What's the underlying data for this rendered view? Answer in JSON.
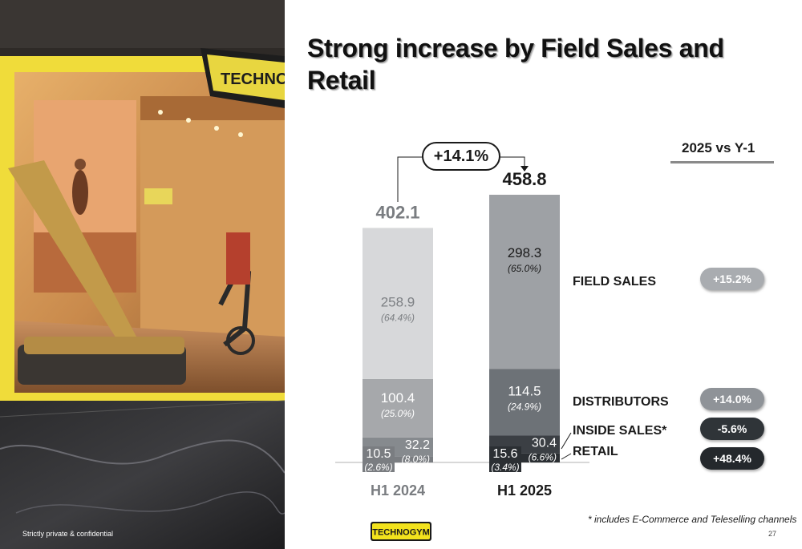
{
  "title": "Strong increase by Field Sales and Retail",
  "comparison_header": "2025 vs Y-1",
  "growth_total": "+14.1%",
  "footnote": "* includes E-Commerce and Teleselling channels",
  "footer_left": "Strictly private & confidential",
  "page_number": "27",
  "photo": {
    "alt_brand": "TECHNOGYM"
  },
  "colors": {
    "field_sales_2024": "#d7d8da",
    "distributors_2024": "#a6a8ab",
    "inside_2024": "#868a8e",
    "retail_2024": "#7a7d81",
    "field_sales_2025": "#9ea1a5",
    "distributors_2025": "#6d7277",
    "inside_2025": "#3b3f44",
    "retail_2025": "#2b2f33",
    "pill_field": "#a9acb0",
    "pill_dist": "#8f9398",
    "pill_inside": "#2f3438",
    "pill_retail": "#24282c",
    "logo_yellow": "#f2e21d"
  },
  "chart_data": {
    "type": "bar",
    "stacked": true,
    "categories": [
      "H1 2024",
      "H1 2025"
    ],
    "totals": [
      "402.1",
      "458.8"
    ],
    "series": [
      {
        "name": "RETAIL",
        "values": [
          10.5,
          15.6
        ],
        "value_labels": [
          "10.5",
          "15.6"
        ],
        "share_labels": [
          "(2.6%)",
          "(3.4%)"
        ],
        "growth": "+48.4%"
      },
      {
        "name": "INSIDE SALES*",
        "values": [
          32.2,
          30.4
        ],
        "value_labels": [
          "32.2",
          "30.4"
        ],
        "share_labels": [
          "(8.0%)",
          "(6.6%)"
        ],
        "growth": "-5.6%"
      },
      {
        "name": "DISTRIBUTORS",
        "values": [
          100.4,
          114.5
        ],
        "value_labels": [
          "100.4",
          "114.5"
        ],
        "share_labels": [
          "(25.0%)",
          "(24.9%)"
        ],
        "growth": "+14.0%"
      },
      {
        "name": "FIELD SALES",
        "values": [
          258.9,
          298.3
        ],
        "value_labels": [
          "258.9",
          "298.3"
        ],
        "share_labels": [
          "(64.4%)",
          "(65.0%)"
        ],
        "growth": "+15.2%"
      }
    ]
  }
}
